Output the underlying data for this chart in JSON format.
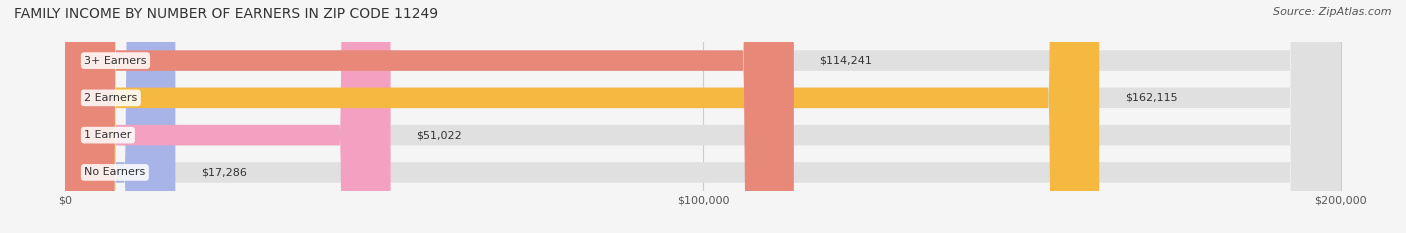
{
  "title": "FAMILY INCOME BY NUMBER OF EARNERS IN ZIP CODE 11249",
  "source": "Source: ZipAtlas.com",
  "categories": [
    "No Earners",
    "1 Earner",
    "2 Earners",
    "3+ Earners"
  ],
  "values": [
    17286,
    51022,
    162115,
    114241
  ],
  "labels": [
    "$17,286",
    "$51,022",
    "$162,115",
    "$114,241"
  ],
  "bar_colors": [
    "#a8b4e8",
    "#f4a0c0",
    "#f5b942",
    "#e88878"
  ],
  "bar_bg_color": "#e8e8e8",
  "xlim": [
    0,
    200000
  ],
  "xticks": [
    0,
    100000,
    200000
  ],
  "xtick_labels": [
    "$0",
    "$100,000",
    "$200,000"
  ],
  "background_color": "#f5f5f5",
  "title_fontsize": 10,
  "source_fontsize": 8,
  "bar_label_fontsize": 8,
  "category_label_fontsize": 8
}
